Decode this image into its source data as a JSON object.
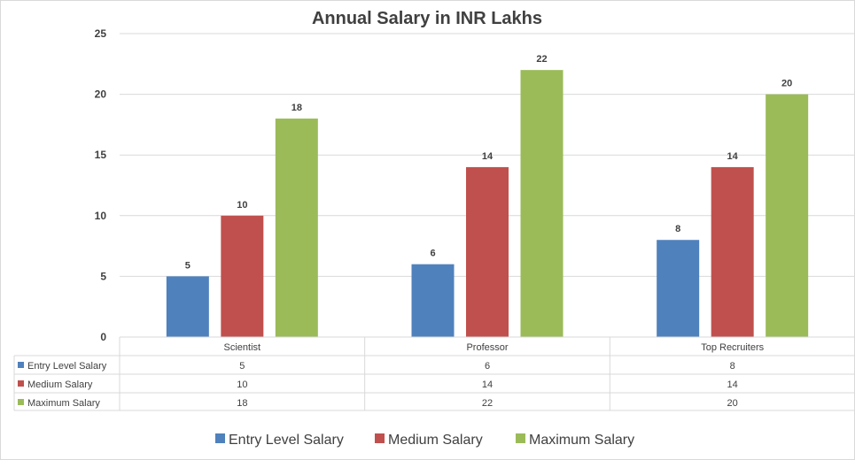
{
  "chart_data": {
    "type": "bar",
    "title": "Annual Salary in INR Lakhs",
    "xlabel": "",
    "ylabel": "",
    "ylim": [
      0,
      25
    ],
    "yticks": [
      0,
      5,
      10,
      15,
      20,
      25
    ],
    "grid": true,
    "categories": [
      "Scientist",
      "Professor",
      "Top Recruiters"
    ],
    "series": [
      {
        "name": "Entry Level Salary",
        "values": [
          5,
          6,
          8
        ],
        "color": "#4f81bd"
      },
      {
        "name": "Medium Salary",
        "values": [
          10,
          14,
          14
        ],
        "color": "#c0504d"
      },
      {
        "name": "Maximum Salary",
        "values": [
          18,
          22,
          20
        ],
        "color": "#9bbb59"
      }
    ],
    "data_table": true,
    "legend_position": "bottom"
  }
}
